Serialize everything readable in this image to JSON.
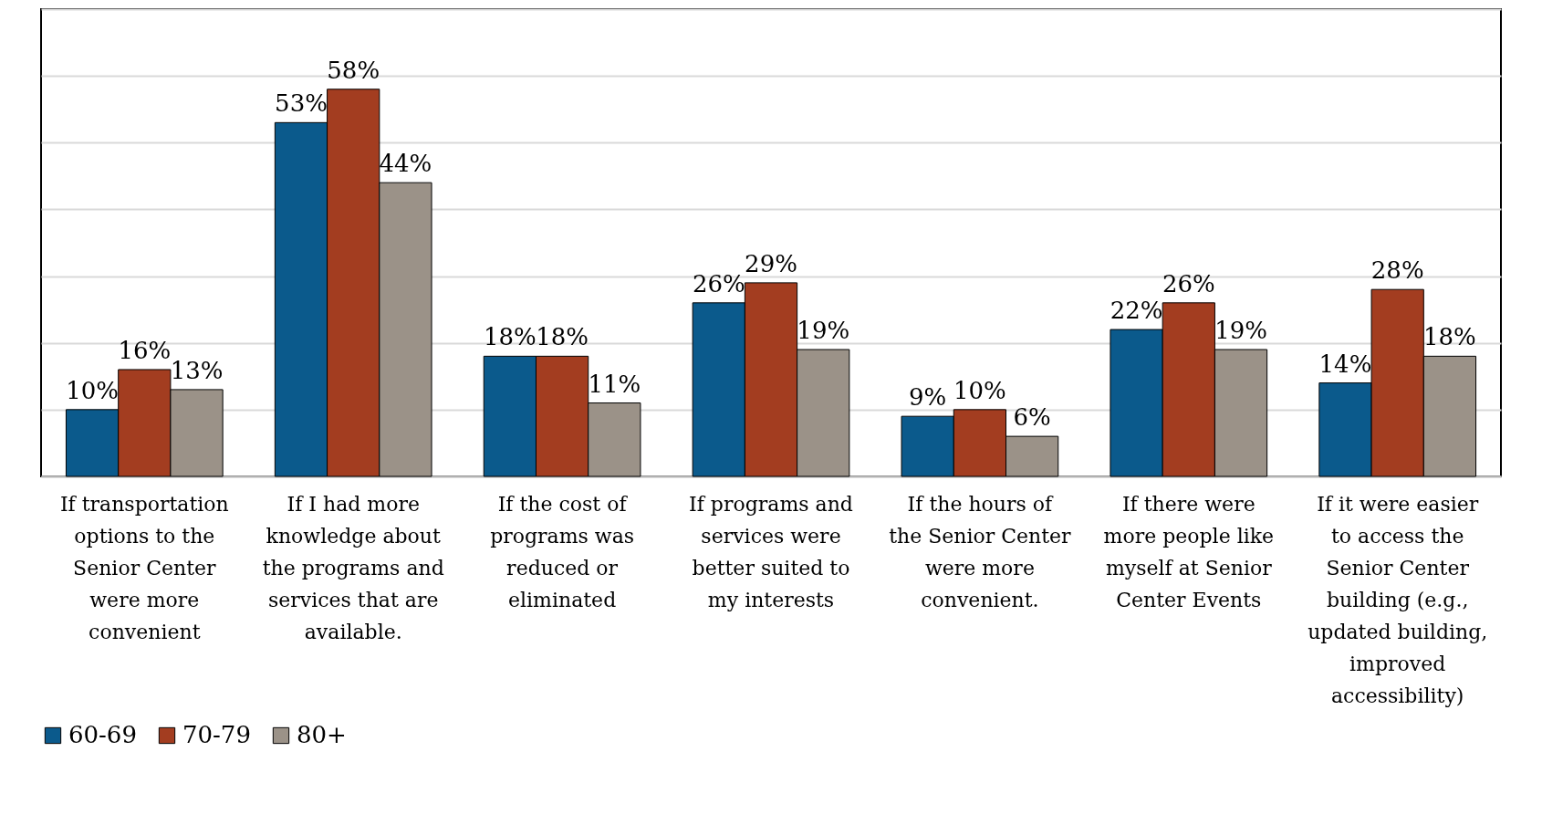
{
  "chart_data": {
    "type": "bar",
    "categories": [
      "If transportation options to the Senior Center were more convenient",
      "If I had more knowledge about the programs and services that are available.",
      "If the cost of programs was reduced or eliminated",
      "If programs  and services were better suited to my interests",
      "If the hours of the Senior Center were more convenient.",
      "If there were more people like myself at Senior Center Events",
      "If it were easier to access the Senior Center building (e.g., updated building, improved accessibility)"
    ],
    "series": [
      {
        "name": "60-69",
        "color": "#0b5a8c",
        "values": [
          10,
          53,
          18,
          26,
          9,
          22,
          14
        ],
        "value_labels": [
          "10%",
          "53%",
          "18%",
          "26%",
          "9%",
          "22%",
          "14%"
        ]
      },
      {
        "name": "70-79",
        "color": "#a33d20",
        "values": [
          16,
          58,
          18,
          29,
          10,
          26,
          28
        ],
        "value_labels": [
          "16%",
          "58%",
          "18%",
          "29%",
          "10%",
          "26%",
          "28%"
        ]
      },
      {
        "name": "80+",
        "color": "#9b9288",
        "values": [
          13,
          44,
          11,
          19,
          6,
          19,
          18
        ],
        "value_labels": [
          "13%",
          "44%",
          "11%",
          "19%",
          "6%",
          "19%",
          "18%"
        ]
      }
    ],
    "ylim": [
      0,
      70
    ],
    "yticks": [
      {
        "value": 0,
        "label": null
      },
      {
        "value": 10,
        "label": null
      },
      {
        "value": 20,
        "label": null
      },
      {
        "value": 30,
        "label": null
      },
      {
        "value": 40,
        "label": null
      },
      {
        "value": 50,
        "label": null
      },
      {
        "value": 60,
        "label": null
      },
      {
        "value": 70,
        "label": null
      }
    ],
    "grid": "y",
    "tick_labels": "x",
    "legend": "bottom"
  }
}
